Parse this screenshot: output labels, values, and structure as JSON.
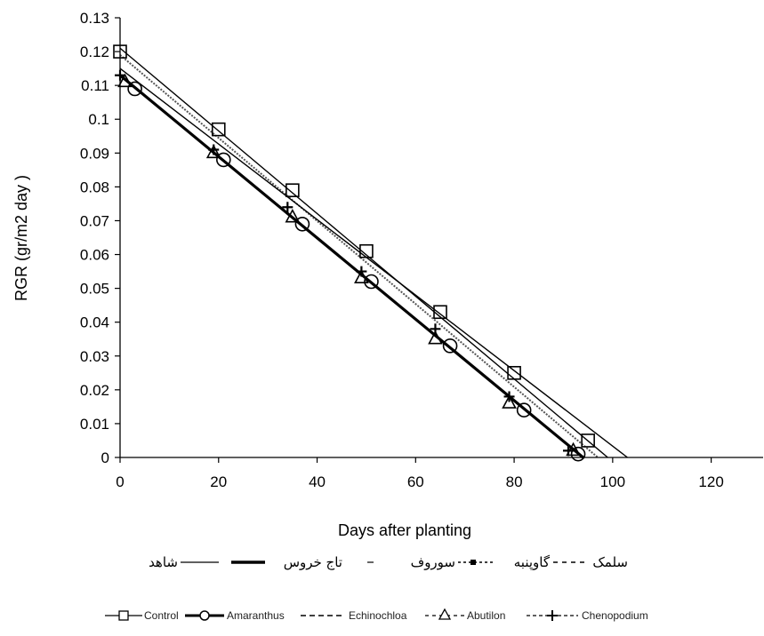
{
  "chart_data": {
    "type": "line",
    "xlabel": "Days after planting",
    "ylabel": "RGR (gr/m2 day )",
    "xlim": [
      0,
      130
    ],
    "ylim": [
      0,
      0.13
    ],
    "x_ticks": [
      "0",
      "20",
      "40",
      "60",
      "80",
      "100",
      "120"
    ],
    "y_ticks": [
      "0",
      "0.01",
      "0.02",
      "0.03",
      "0.04",
      "0.05",
      "0.06",
      "0.07",
      "0.08",
      "0.09",
      "0.1",
      "0.11",
      "0.12",
      "0.13"
    ],
    "grid": false,
    "legend_placement": "bottom",
    "series": [
      {
        "name": "Control",
        "marker": "square",
        "x": [
          0,
          20,
          35,
          50,
          65,
          80,
          95
        ],
        "y": [
          0.12,
          0.097,
          0.079,
          0.061,
          0.043,
          0.025,
          0.005
        ]
      },
      {
        "name": "Amaranthus",
        "marker": "circle",
        "x": [
          3,
          21,
          37,
          51,
          67,
          82,
          93
        ],
        "y": [
          0.109,
          0.088,
          0.069,
          0.052,
          0.033,
          0.014,
          0.001
        ]
      },
      {
        "name": "Echinochloa",
        "marker": "none",
        "x": [
          0,
          20,
          35,
          50,
          65,
          80,
          95
        ],
        "y": [
          0.118,
          0.095,
          0.077,
          0.059,
          0.041,
          0.023,
          0.004
        ]
      },
      {
        "name": "Abutilon",
        "marker": "triangle",
        "x": [
          1,
          19,
          35,
          49,
          64,
          79,
          92
        ],
        "y": [
          0.111,
          0.09,
          0.071,
          0.053,
          0.035,
          0.016,
          0.002
        ]
      },
      {
        "name": "Chenopodium",
        "marker": "plus",
        "x": [
          0,
          19,
          34,
          49,
          64,
          79,
          91
        ],
        "y": [
          0.113,
          0.091,
          0.074,
          0.055,
          0.038,
          0.018,
          0.002
        ]
      }
    ],
    "trendlines": [
      {
        "style": "solid",
        "weight": "thin",
        "from": [
          0,
          0.121
        ],
        "to": [
          99,
          0
        ]
      },
      {
        "style": "solid",
        "weight": "thick",
        "from": [
          0,
          0.113
        ],
        "to": [
          94,
          0
        ]
      },
      {
        "style": "dotted",
        "weight": "normal",
        "from": [
          0,
          0.119
        ],
        "to": [
          97,
          0
        ]
      },
      {
        "style": "solid",
        "weight": "thin",
        "from": [
          0,
          0.115
        ],
        "to": [
          103,
          0
        ]
      }
    ],
    "legend_persian": [
      "شاهد",
      "تاج خروس",
      "سوروف",
      "گاوپنبه",
      "سلمک"
    ],
    "legend_english": [
      "Control",
      "Amaranthus",
      "Echinochloa",
      "Abutilon",
      "Chenopodium"
    ]
  }
}
